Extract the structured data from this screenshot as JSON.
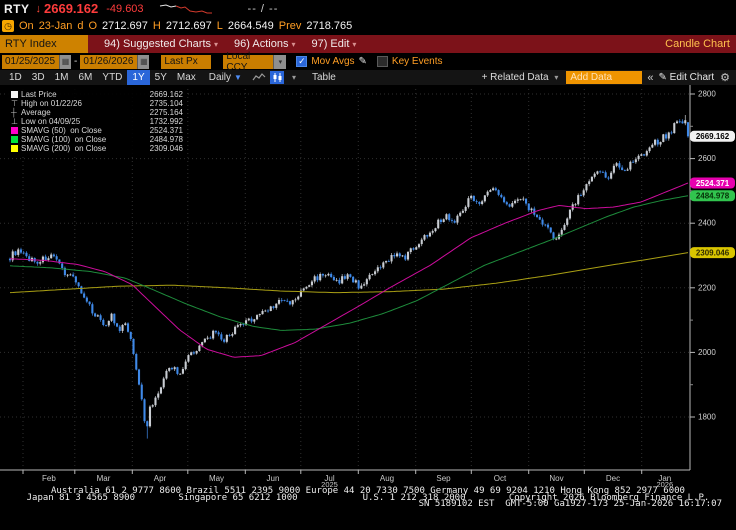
{
  "header": {
    "symbol": "RTY",
    "last_price": "2669.162",
    "change": "-49.603",
    "range_placeholder": "--  /  --",
    "quote": {
      "on_label": "On",
      "date": "23-Jan",
      "freq": "d",
      "open_label": "O",
      "open": "2712.697",
      "high_label": "H",
      "high": "2712.697",
      "low_label": "L",
      "low": "2664.549",
      "prev_label": "Prev",
      "prev": "2718.765"
    }
  },
  "menu_bar": {
    "ticker_field": "RTY Index",
    "items": [
      {
        "label": "94) Suggested Charts"
      },
      {
        "label": "96) Actions"
      },
      {
        "label": "97) Edit"
      }
    ],
    "right_label": "Candle Chart"
  },
  "controls": {
    "date_from": "01/25/2025",
    "date_to": "01/26/2026",
    "price_field": "Last Px",
    "currency": "Local CCY",
    "mov_avgs_label": "Mov Avgs",
    "mov_avgs_checked": true,
    "key_events_label": "Key Events",
    "key_events_checked": false
  },
  "toolbar": {
    "ranges": [
      "1D",
      "3D",
      "1M",
      "6M",
      "YTD",
      "1Y",
      "5Y",
      "Max"
    ],
    "active_range": "1Y",
    "period": "Daily",
    "table_label": "Table",
    "related_data_label": "+ Related Data",
    "add_data_placeholder": "Add Data",
    "edit_chart_label": "Edit Chart"
  },
  "legend": {
    "rows": [
      {
        "marker": "square",
        "color": "#f2f2f2",
        "label": "Last Price",
        "value": "2669.162"
      },
      {
        "marker": "high",
        "label": "High on 01/22/26",
        "value": "2735.104"
      },
      {
        "marker": "avg",
        "label": "Average",
        "value": "2275.164"
      },
      {
        "marker": "low",
        "label": "Low on 04/09/25",
        "value": "1732.992"
      },
      {
        "marker": "square",
        "color": "#ff00c8",
        "label": "SMAVG (50)  on Close",
        "value": "2524.371"
      },
      {
        "marker": "square",
        "color": "#00e03c",
        "label": "SMAVG (100)  on Close",
        "value": "2484.978"
      },
      {
        "marker": "square",
        "color": "#ffff00",
        "label": "SMAVG (200)  on Close",
        "value": "2309.046"
      }
    ]
  },
  "chart_data": {
    "type": "candlestick",
    "symbol": "RTY Index",
    "period": "Daily",
    "x_range": [
      "01/25/2025",
      "01/26/2026"
    ],
    "total_days": 366,
    "num_candles": 248,
    "y_axis": {
      "ticks": [
        2800,
        2600,
        2400,
        2200,
        2000,
        1800
      ],
      "minor_ticks": [
        2700,
        2500,
        2300,
        2100,
        1900
      ]
    },
    "months": [
      {
        "label": "Feb",
        "start_day": 7
      },
      {
        "label": "Mar",
        "start_day": 35
      },
      {
        "label": "Apr",
        "start_day": 66
      },
      {
        "label": "May",
        "start_day": 96
      },
      {
        "label": "Jun",
        "start_day": 127
      },
      {
        "label": "Jul",
        "start_day": 157,
        "year": "2025"
      },
      {
        "label": "Aug",
        "start_day": 188
      },
      {
        "label": "Sep",
        "start_day": 219
      },
      {
        "label": "Oct",
        "start_day": 249
      },
      {
        "label": "Nov",
        "start_day": 280
      },
      {
        "label": "Dec",
        "start_day": 310
      },
      {
        "label": "Jan",
        "start_day": 341,
        "year": "2026"
      }
    ],
    "close_path_anchors": [
      [
        0.0,
        2295
      ],
      [
        0.01,
        2315
      ],
      [
        0.019,
        2300
      ],
      [
        0.04,
        2280
      ],
      [
        0.06,
        2300
      ],
      [
        0.08,
        2250
      ],
      [
        0.096,
        2230
      ],
      [
        0.11,
        2160
      ],
      [
        0.125,
        2120
      ],
      [
        0.14,
        2085
      ],
      [
        0.15,
        2115
      ],
      [
        0.16,
        2060
      ],
      [
        0.17,
        2090
      ],
      [
        0.18,
        2020
      ],
      [
        0.188,
        1950
      ],
      [
        0.194,
        1845
      ],
      [
        0.202,
        1760
      ],
      [
        0.208,
        1870
      ],
      [
        0.213,
        1835
      ],
      [
        0.225,
        1915
      ],
      [
        0.24,
        1955
      ],
      [
        0.25,
        1930
      ],
      [
        0.262,
        1990
      ],
      [
        0.28,
        2020
      ],
      [
        0.3,
        2060
      ],
      [
        0.315,
        2035
      ],
      [
        0.33,
        2070
      ],
      [
        0.347,
        2090
      ],
      [
        0.365,
        2115
      ],
      [
        0.385,
        2140
      ],
      [
        0.4,
        2160
      ],
      [
        0.415,
        2150
      ],
      [
        0.429,
        2185
      ],
      [
        0.45,
        2230
      ],
      [
        0.465,
        2245
      ],
      [
        0.48,
        2215
      ],
      [
        0.5,
        2240
      ],
      [
        0.514,
        2205
      ],
      [
        0.53,
        2230
      ],
      [
        0.55,
        2270
      ],
      [
        0.565,
        2305
      ],
      [
        0.58,
        2290
      ],
      [
        0.598,
        2330
      ],
      [
        0.615,
        2365
      ],
      [
        0.63,
        2400
      ],
      [
        0.645,
        2425
      ],
      [
        0.655,
        2400
      ],
      [
        0.67,
        2455
      ],
      [
        0.68,
        2480
      ],
      [
        0.695,
        2465
      ],
      [
        0.71,
        2510
      ],
      [
        0.725,
        2480
      ],
      [
        0.74,
        2455
      ],
      [
        0.75,
        2485
      ],
      [
        0.765,
        2450
      ],
      [
        0.78,
        2415
      ],
      [
        0.795,
        2380
      ],
      [
        0.805,
        2340
      ],
      [
        0.815,
        2390
      ],
      [
        0.825,
        2440
      ],
      [
        0.835,
        2470
      ],
      [
        0.847,
        2505
      ],
      [
        0.86,
        2540
      ],
      [
        0.87,
        2565
      ],
      [
        0.88,
        2540
      ],
      [
        0.895,
        2585
      ],
      [
        0.905,
        2560
      ],
      [
        0.92,
        2600
      ],
      [
        0.932,
        2615
      ],
      [
        0.945,
        2640
      ],
      [
        0.96,
        2660
      ],
      [
        0.975,
        2690
      ],
      [
        0.985,
        2715
      ],
      [
        0.99,
        2725
      ],
      [
        1.0,
        2669.162
      ]
    ],
    "last_ohlc": {
      "open": 2712.697,
      "high": 2712.697,
      "low": 2664.549,
      "close": 2669.162
    },
    "prev_close": 2718.765,
    "high_marker": {
      "date": "01/22/26",
      "value": 2735.104
    },
    "low_marker": {
      "date": "04/09/25",
      "value": 1732.992,
      "t": 0.202
    },
    "average": 2275.164,
    "smavg_50": {
      "window": 50,
      "color": "#cc0d9c",
      "last": 2524.371,
      "anchors": [
        [
          0,
          2290
        ],
        [
          0.05,
          2285
        ],
        [
          0.1,
          2272
        ],
        [
          0.14,
          2250
        ],
        [
          0.18,
          2210
        ],
        [
          0.21,
          2150
        ],
        [
          0.25,
          2070
        ],
        [
          0.29,
          2010
        ],
        [
          0.33,
          1985
        ],
        [
          0.37,
          1990
        ],
        [
          0.42,
          2030
        ],
        [
          0.47,
          2090
        ],
        [
          0.52,
          2150
        ],
        [
          0.56,
          2200
        ],
        [
          0.62,
          2270
        ],
        [
          0.68,
          2355
        ],
        [
          0.73,
          2400
        ],
        [
          0.78,
          2440
        ],
        [
          0.81,
          2455
        ],
        [
          0.85,
          2445
        ],
        [
          0.89,
          2450
        ],
        [
          0.93,
          2465
        ],
        [
          1.0,
          2524.371
        ]
      ]
    },
    "smavg_100": {
      "window": 100,
      "color": "#1e8c3c",
      "last": 2484.978,
      "anchors": [
        [
          0,
          2268
        ],
        [
          0.06,
          2262
        ],
        [
          0.12,
          2250
        ],
        [
          0.17,
          2230
        ],
        [
          0.21,
          2195
        ],
        [
          0.26,
          2150
        ],
        [
          0.31,
          2110
        ],
        [
          0.36,
          2080
        ],
        [
          0.4,
          2068
        ],
        [
          0.45,
          2072
        ],
        [
          0.5,
          2090
        ],
        [
          0.55,
          2120
        ],
        [
          0.6,
          2160
        ],
        [
          0.65,
          2215
        ],
        [
          0.7,
          2270
        ],
        [
          0.75,
          2310
        ],
        [
          0.8,
          2350
        ],
        [
          0.84,
          2385
        ],
        [
          0.88,
          2420
        ],
        [
          0.92,
          2450
        ],
        [
          0.96,
          2470
        ],
        [
          1.0,
          2484.978
        ]
      ]
    },
    "smavg_200": {
      "window": 200,
      "color": "#aaa014",
      "last": 2309.046,
      "anchors": [
        [
          0,
          2185
        ],
        [
          0.08,
          2195
        ],
        [
          0.16,
          2205
        ],
        [
          0.24,
          2208
        ],
        [
          0.32,
          2200
        ],
        [
          0.4,
          2190
        ],
        [
          0.48,
          2185
        ],
        [
          0.56,
          2188
        ],
        [
          0.64,
          2196
        ],
        [
          0.72,
          2215
        ],
        [
          0.8,
          2240
        ],
        [
          0.88,
          2268
        ],
        [
          0.94,
          2288
        ],
        [
          1.0,
          2309.046
        ]
      ]
    },
    "up_color": "#c9cdd3",
    "down_color": "#3f89e8",
    "grid_color": "#2f2f2f",
    "axis_color": "#b8b8b8",
    "label_color": "#c9c9c9",
    "axis_badges": [
      {
        "value": "2669.162",
        "price": 2669.162,
        "bg": "#f2f2f2",
        "fg": "#000000"
      },
      {
        "value": "2524.371",
        "price": 2524.371,
        "bg": "#e600ae",
        "fg": "#ffffff"
      },
      {
        "value": "2484.978",
        "price": 2484.978,
        "bg": "#31c44e",
        "fg": "#053007"
      },
      {
        "value": "2309.046",
        "price": 2309.046,
        "bg": "#d9c500",
        "fg": "#2e2a00"
      }
    ]
  },
  "footer": {
    "lines": [
      "Australia 61 2 9777 8600 Brazil 5511 2395 9000 Europe 44 20 7330 7500 Germany 49 69 9204 1210 Hong Kong 852 2977 6000",
      "Japan 81 3 4565 8900        Singapore 65 6212 1000            U.S. 1 212 318 2000        Copyright 2026 Bloomberg Finance L.P.",
      "SN 5189102 EST  GMT-5:00 Ga1927-173 25-Jan-2026 16:17:07"
    ]
  }
}
